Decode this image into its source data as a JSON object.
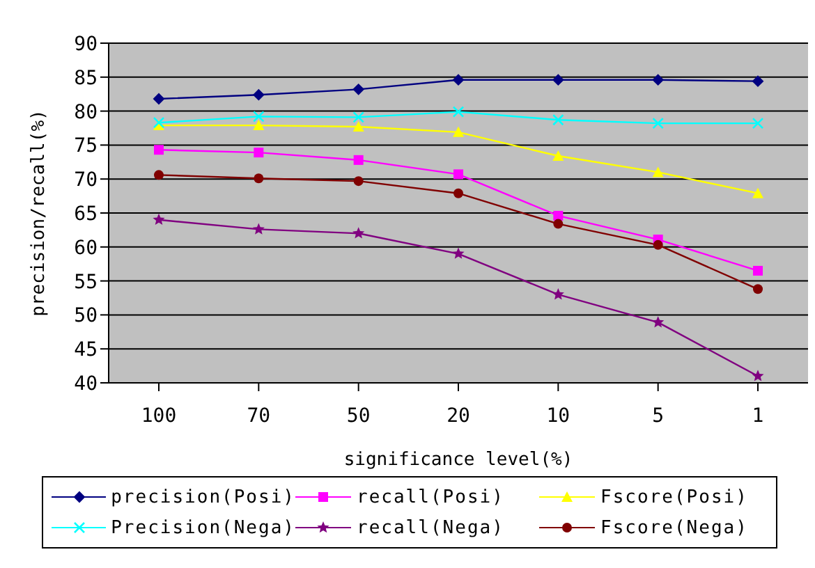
{
  "chart_data": {
    "type": "line",
    "xlabel": "significance level(%)",
    "ylabel": "precision/recall(%)",
    "categories": [
      "100",
      "70",
      "50",
      "20",
      "10",
      "5",
      "1"
    ],
    "ylim": [
      40,
      90
    ],
    "yticks": [
      40,
      45,
      50,
      55,
      60,
      65,
      70,
      75,
      80,
      85,
      90
    ],
    "grid": "y",
    "legend": "bottom",
    "series": [
      {
        "name": "precision(Posi)",
        "color": "#000080",
        "marker": "diamond",
        "values": [
          81.8,
          82.4,
          83.2,
          84.6,
          84.6,
          84.6,
          84.4
        ]
      },
      {
        "name": "recall(Posi)",
        "color": "#ff00ff",
        "marker": "square",
        "values": [
          74.3,
          73.9,
          72.8,
          70.7,
          64.6,
          61.1,
          56.5
        ]
      },
      {
        "name": "Fscore(Posi)",
        "color": "#ffff00",
        "marker": "triangle",
        "values": [
          77.9,
          77.9,
          77.7,
          76.9,
          73.4,
          71.0,
          67.9
        ]
      },
      {
        "name": "Precision(Nega)",
        "color": "#00ffff",
        "marker": "cross",
        "values": [
          78.3,
          79.2,
          79.1,
          79.9,
          78.7,
          78.2,
          78.2
        ]
      },
      {
        "name": "recall(Nega)",
        "color": "#800080",
        "marker": "star",
        "values": [
          64.0,
          62.6,
          62.0,
          59.0,
          53.0,
          48.9,
          41.0
        ]
      },
      {
        "name": "Fscore(Nega)",
        "color": "#800000",
        "marker": "circle",
        "values": [
          70.6,
          70.1,
          69.7,
          67.9,
          63.4,
          60.3,
          53.8
        ]
      }
    ]
  }
}
